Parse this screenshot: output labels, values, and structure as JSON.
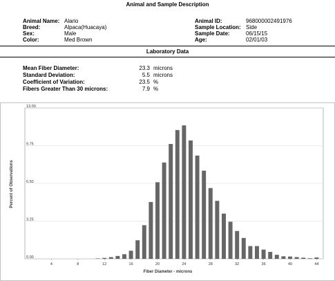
{
  "header": {
    "title": "Animal and Sample Description"
  },
  "animal": {
    "name_label": "Animal Name:",
    "name": "Alario",
    "breed_label": "Breed:",
    "breed": "Alpaca(Huacaya)",
    "sex_label": "Sex:",
    "sex": "Male",
    "color_label": "Color:",
    "color": "Med Brown",
    "id_label": "Animal ID:",
    "id": "968000002491976",
    "location_label": "Sample Location:",
    "location": "Side",
    "date_label": "Sample Date:",
    "date": "06/15/15",
    "age_label": "Age:",
    "age": "02/01/03"
  },
  "lab": {
    "title": "Laboratory Data",
    "mfd_label": "Mean Fiber Diameter:",
    "mfd_value": "23.3",
    "mfd_unit": "microns",
    "sd_label": "Standard Deviation:",
    "sd_value": "5.5",
    "sd_unit": "microns",
    "cv_label": "Coefficient of Variation:",
    "cv_value": "23.5",
    "cv_unit": "%",
    "fgt_label": "Fibers Greater Than 30 microns:",
    "fgt_value": "7.9",
    "fgt_unit": "%"
  },
  "chart_data": {
    "type": "bar",
    "xlabel": "Fiber Diameter - microns",
    "ylabel": "Percent of Observations",
    "xlim": [
      0,
      45
    ],
    "ylim": [
      0,
      13
    ],
    "x_ticks": [
      "4",
      "8",
      "12",
      "16",
      "20",
      "24",
      "28",
      "32",
      "36",
      "40",
      "44"
    ],
    "y_ticks": [
      "0.00",
      "3.25",
      "6.50",
      "9.75",
      "13.00"
    ],
    "grid": true,
    "x": [
      1,
      2,
      3,
      4,
      5,
      6,
      7,
      8,
      9,
      10,
      11,
      12,
      13,
      14,
      15,
      16,
      17,
      18,
      19,
      20,
      21,
      22,
      23,
      24,
      25,
      26,
      27,
      28,
      29,
      30,
      31,
      32,
      33,
      34,
      35,
      36,
      37,
      38,
      39,
      40,
      41,
      42,
      43,
      44
    ],
    "values": [
      0,
      0,
      0,
      0,
      0,
      0,
      0,
      0,
      0,
      0,
      0.03,
      0.08,
      0.15,
      0.25,
      0.4,
      0.7,
      1.6,
      2.9,
      4.9,
      6.6,
      8.3,
      9.9,
      11.1,
      11.5,
      10.2,
      8.9,
      7.6,
      6.1,
      5.0,
      3.9,
      3.2,
      2.4,
      1.8,
      1.1,
      1.1,
      0.8,
      0.6,
      0.35,
      0.22,
      0.2,
      0.15,
      0.1,
      0.05,
      0.12
    ]
  }
}
